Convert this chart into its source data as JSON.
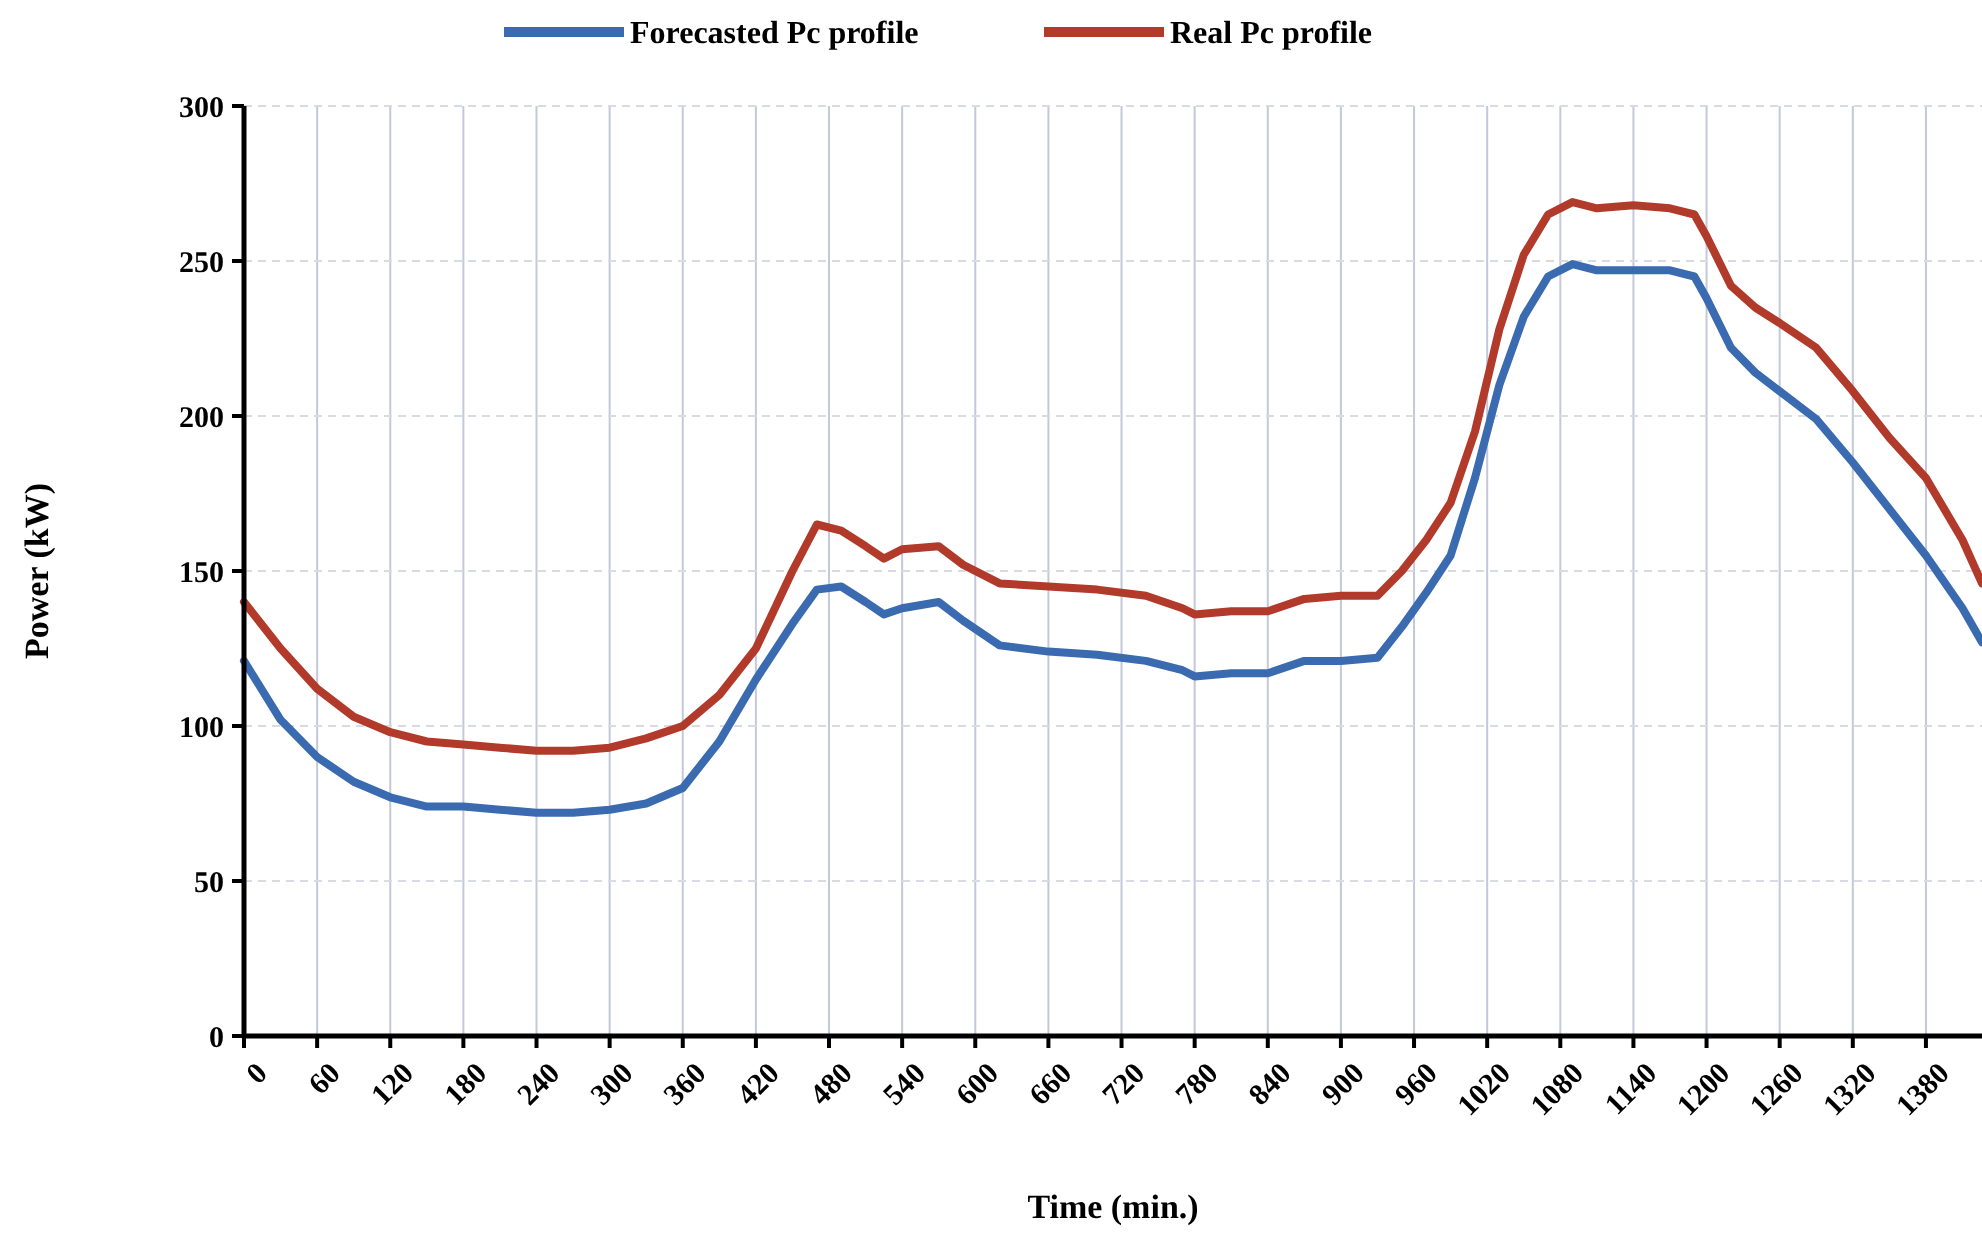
{
  "chart_data": {
    "type": "line",
    "xlabel": "Time (min.)",
    "ylabel": "Power (kW)",
    "xlim": [
      0,
      1426
    ],
    "ylim": [
      0,
      300
    ],
    "xticks": [
      0,
      60,
      120,
      180,
      240,
      300,
      360,
      420,
      480,
      540,
      600,
      660,
      720,
      780,
      840,
      900,
      960,
      1020,
      1080,
      1140,
      1200,
      1260,
      1320,
      1380
    ],
    "yticks": [
      0,
      50,
      100,
      150,
      200,
      250,
      300
    ],
    "grid": true,
    "legend": "top",
    "line_style": "solid",
    "marker": "none",
    "x": [
      0,
      30,
      60,
      90,
      120,
      150,
      180,
      210,
      240,
      270,
      300,
      330,
      360,
      390,
      420,
      450,
      470,
      490,
      510,
      525,
      540,
      570,
      590,
      620,
      660,
      700,
      740,
      770,
      780,
      810,
      840,
      870,
      900,
      930,
      950,
      970,
      990,
      1010,
      1030,
      1050,
      1070,
      1090,
      1110,
      1140,
      1170,
      1190,
      1200,
      1220,
      1240,
      1260,
      1290,
      1320,
      1350,
      1380,
      1410,
      1426
    ],
    "series": [
      {
        "name": "Forecasted Pc profile",
        "color": "#3a6ab0",
        "values": [
          121,
          102,
          90,
          82,
          77,
          74,
          74,
          73,
          72,
          72,
          73,
          75,
          80,
          95,
          115,
          133,
          144,
          145,
          140,
          136,
          138,
          140,
          134,
          126,
          124,
          123,
          121,
          118,
          116,
          117,
          117,
          121,
          121,
          122,
          132,
          143,
          155,
          180,
          210,
          232,
          245,
          249,
          247,
          247,
          247,
          245,
          238,
          222,
          214,
          208,
          199,
          185,
          170,
          155,
          138,
          127
        ]
      },
      {
        "name": "Real Pc profile",
        "color": "#b23a2a",
        "values": [
          140,
          125,
          112,
          103,
          98,
          95,
          94,
          93,
          92,
          92,
          93,
          96,
          100,
          110,
          125,
          150,
          165,
          163,
          158,
          154,
          157,
          158,
          152,
          146,
          145,
          144,
          142,
          138,
          136,
          137,
          137,
          141,
          142,
          142,
          150,
          160,
          172,
          195,
          228,
          252,
          265,
          269,
          267,
          268,
          267,
          265,
          258,
          242,
          235,
          230,
          222,
          208,
          193,
          180,
          160,
          146
        ]
      }
    ]
  }
}
